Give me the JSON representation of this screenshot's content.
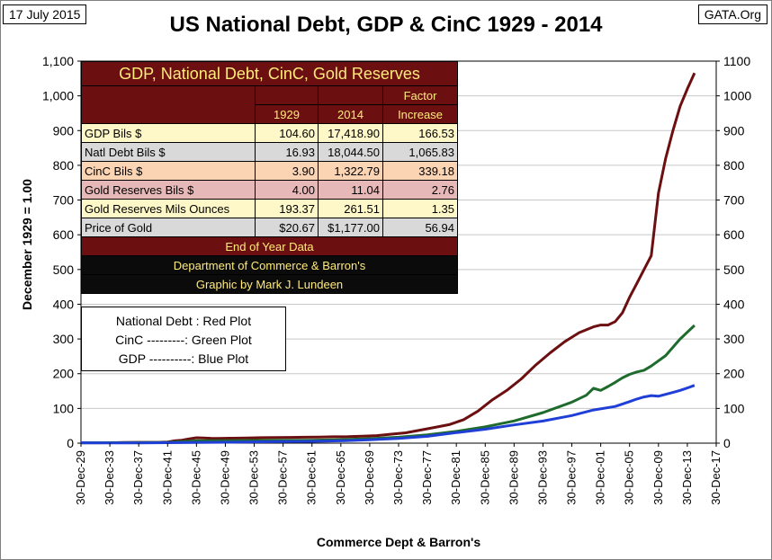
{
  "header": {
    "date": "17 July 2015",
    "site": "GATA.Org",
    "title": "US National Debt, GDP & CinC 1929 - 2014"
  },
  "axes": {
    "ylabel": "December 1929  =  1.00",
    "xlabel": "Commerce Dept & Barron's"
  },
  "table": {
    "banner": "GDP, National Debt, CinC, Gold Reserves",
    "header": {
      "c1929": "1929",
      "c2014": "2014",
      "factor1": "Factor",
      "factor2": "Increase"
    },
    "rows": [
      {
        "label": "GDP Bils $",
        "v1929": "104.60",
        "v2014": "17,418.90",
        "factor": "166.53",
        "bg": "#fef7c7"
      },
      {
        "label": "Natl Debt Bils $",
        "v1929": "16.93",
        "v2014": "18,044.50",
        "factor": "1,065.83",
        "bg": "#d9d9d9"
      },
      {
        "label": "CinC Bils $",
        "v1929": "3.90",
        "v2014": "1,322.79",
        "factor": "339.18",
        "bg": "#fbd4b4"
      },
      {
        "label": "Gold Reserves Bils $",
        "v1929": "4.00",
        "v2014": "11.04",
        "factor": "2.76",
        "bg": "#e6b9b8"
      },
      {
        "label": "Gold Reserves Mils Ounces",
        "v1929": "193.37",
        "v2014": "261.51",
        "factor": "1.35",
        "bg": "#fef7c7"
      },
      {
        "label": "Price of Gold",
        "v1929": "$20.67",
        "v2014": "$1,177.00",
        "factor": "56.94",
        "bg": "#d9d9d9"
      }
    ],
    "footer1": "End of Year Data",
    "footer2": "Department of Commerce & Barron's",
    "footer3": "Graphic by Mark J. Lundeen"
  },
  "legend": {
    "line1": "National Debt : Red Plot",
    "line2": "CinC ---------: Green Plot",
    "line3": "GDP ----------: Blue  Plot"
  },
  "chart_data": {
    "type": "line",
    "x_unit": "year (end of December)",
    "xlim": [
      1929,
      2017
    ],
    "ylim": [
      0,
      1100
    ],
    "y_ticks_left": [
      "0",
      "100",
      "200",
      "300",
      "400",
      "500",
      "600",
      "700",
      "800",
      "900",
      "1,000",
      "1,100"
    ],
    "y_ticks_right": [
      "0",
      "100",
      "200",
      "300",
      "400",
      "500",
      "600",
      "700",
      "800",
      "900",
      "1000",
      "1100"
    ],
    "x_ticks": [
      "30-Dec-29",
      "30-Dec-33",
      "30-Dec-37",
      "30-Dec-41",
      "30-Dec-45",
      "30-Dec-49",
      "30-Dec-53",
      "30-Dec-57",
      "30-Dec-61",
      "30-Dec-65",
      "30-Dec-69",
      "30-Dec-73",
      "30-Dec-77",
      "30-Dec-81",
      "30-Dec-85",
      "30-Dec-89",
      "30-Dec-93",
      "30-Dec-97",
      "30-Dec-01",
      "30-Dec-05",
      "30-Dec-09",
      "30-Dec-13",
      "30-Dec-17"
    ],
    "grid": "horizontal",
    "series": [
      {
        "color": "#6b0f10",
        "points": [
          [
            1929,
            1
          ],
          [
            1931,
            1.1
          ],
          [
            1933,
            1.4
          ],
          [
            1935,
            1.7
          ],
          [
            1937,
            2.2
          ],
          [
            1939,
            2.4
          ],
          [
            1940,
            2.5
          ],
          [
            1941,
            3.4
          ],
          [
            1942,
            6.7
          ],
          [
            1943,
            8.5
          ],
          [
            1944,
            12.5
          ],
          [
            1945,
            15.5
          ],
          [
            1946,
            15.1
          ],
          [
            1947,
            13.9
          ],
          [
            1948,
            13.8
          ],
          [
            1950,
            14.2
          ],
          [
            1952,
            15
          ],
          [
            1954,
            15.8
          ],
          [
            1956,
            16
          ],
          [
            1958,
            16.6
          ],
          [
            1960,
            17
          ],
          [
            1962,
            17.7
          ],
          [
            1964,
            18.3
          ],
          [
            1966,
            18.7
          ],
          [
            1968,
            20.3
          ],
          [
            1970,
            21.7
          ],
          [
            1972,
            25.8
          ],
          [
            1974,
            29.8
          ],
          [
            1976,
            37.6
          ],
          [
            1978,
            45.3
          ],
          [
            1980,
            53.2
          ],
          [
            1982,
            67.5
          ],
          [
            1984,
            92.5
          ],
          [
            1986,
            125
          ],
          [
            1988,
            152
          ],
          [
            1990,
            185
          ],
          [
            1992,
            225
          ],
          [
            1994,
            260
          ],
          [
            1996,
            292
          ],
          [
            1998,
            318
          ],
          [
            2000,
            335
          ],
          [
            2001,
            340
          ],
          [
            2002,
            340
          ],
          [
            2003,
            350
          ],
          [
            2004,
            375
          ],
          [
            2005,
            420
          ],
          [
            2006,
            460
          ],
          [
            2007,
            500
          ],
          [
            2008,
            540
          ],
          [
            2009,
            720
          ],
          [
            2010,
            820
          ],
          [
            2011,
            900
          ],
          [
            2012,
            970
          ],
          [
            2013,
            1020
          ],
          [
            2014,
            1065.83
          ]
        ]
      },
      {
        "color": "#1e6b2d",
        "points": [
          [
            1929,
            1
          ],
          [
            1933,
            1.3
          ],
          [
            1937,
            1.6
          ],
          [
            1941,
            2.4
          ],
          [
            1945,
            6.8
          ],
          [
            1949,
            7
          ],
          [
            1953,
            7.7
          ],
          [
            1957,
            8.1
          ],
          [
            1961,
            8.6
          ],
          [
            1965,
            10
          ],
          [
            1969,
            13
          ],
          [
            1973,
            17
          ],
          [
            1977,
            24
          ],
          [
            1981,
            34
          ],
          [
            1985,
            47
          ],
          [
            1989,
            64
          ],
          [
            1993,
            88
          ],
          [
            1997,
            118
          ],
          [
            1999,
            138
          ],
          [
            2000,
            158
          ],
          [
            2001,
            152
          ],
          [
            2002,
            163
          ],
          [
            2003,
            175
          ],
          [
            2004,
            188
          ],
          [
            2005,
            198
          ],
          [
            2006,
            205
          ],
          [
            2007,
            210
          ],
          [
            2008,
            222
          ],
          [
            2010,
            252
          ],
          [
            2012,
            300
          ],
          [
            2014,
            339.18
          ]
        ]
      },
      {
        "color": "#1f3fd6",
        "points": [
          [
            1929,
            1
          ],
          [
            1933,
            0.54
          ],
          [
            1937,
            0.87
          ],
          [
            1941,
            1.2
          ],
          [
            1945,
            2
          ],
          [
            1949,
            2.5
          ],
          [
            1953,
            3.6
          ],
          [
            1957,
            4.3
          ],
          [
            1961,
            5.1
          ],
          [
            1965,
            6.8
          ],
          [
            1969,
            9.6
          ],
          [
            1973,
            13.5
          ],
          [
            1977,
            19.6
          ],
          [
            1981,
            30.3
          ],
          [
            1985,
            40
          ],
          [
            1989,
            52.5
          ],
          [
            1993,
            63.7
          ],
          [
            1997,
            79.4
          ],
          [
            2000,
            95.5
          ],
          [
            2003,
            105.7
          ],
          [
            2005,
            119.5
          ],
          [
            2006,
            127
          ],
          [
            2007,
            133
          ],
          [
            2008,
            137
          ],
          [
            2009,
            135
          ],
          [
            2010,
            140.5
          ],
          [
            2011,
            146
          ],
          [
            2012,
            152
          ],
          [
            2013,
            159
          ],
          [
            2014,
            166.53
          ]
        ]
      }
    ]
  }
}
